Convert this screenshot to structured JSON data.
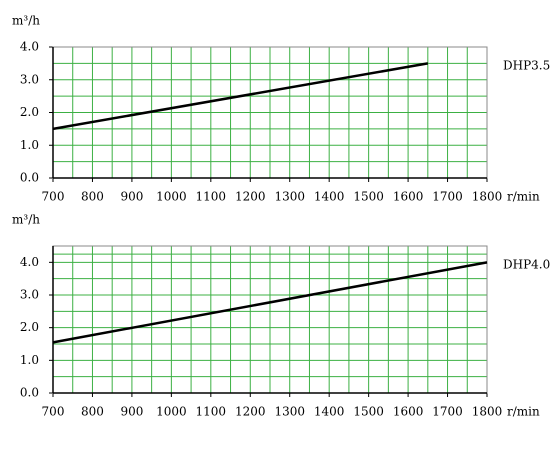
{
  "chart_data": [
    {
      "type": "line",
      "y_label": "m³/h",
      "x_label": "r/min",
      "x": [
        700,
        1650
      ],
      "series": [
        {
          "name": "DHP3.5",
          "color": "#000000",
          "values": [
            1.5,
            3.5
          ]
        }
      ],
      "xlim": [
        700,
        1800
      ],
      "xticks": [
        700,
        800,
        900,
        1000,
        1100,
        1200,
        1300,
        1400,
        1500,
        1600,
        1700,
        1800
      ],
      "ylim": [
        0,
        4
      ],
      "yticks": [
        {
          "value": 0,
          "label": "0.0"
        },
        {
          "value": 1,
          "label": "1.0"
        },
        {
          "value": 2,
          "label": "2.0"
        },
        {
          "value": 3,
          "label": "3.0"
        },
        {
          "value": 4,
          "label": "4.0"
        }
      ],
      "grid": true,
      "grid_color": "#3cb043"
    },
    {
      "type": "line",
      "y_label": "m³/h",
      "x_label": "r/min",
      "x": [
        700,
        1800
      ],
      "series": [
        {
          "name": "DHP4.0",
          "color": "#000000",
          "values": [
            1.55,
            4.0
          ]
        }
      ],
      "xlim": [
        700,
        1800
      ],
      "xticks": [
        700,
        800,
        900,
        1000,
        1100,
        1200,
        1300,
        1400,
        1500,
        1600,
        1700,
        1800
      ],
      "ylim": [
        0,
        4.5
      ],
      "yticks": [
        {
          "value": 0,
          "label": "0.0"
        },
        {
          "value": 1,
          "label": "1.0"
        },
        {
          "value": 2,
          "label": "2.0"
        },
        {
          "value": 3,
          "label": "3.0"
        },
        {
          "value": 4,
          "label": "4.0"
        }
      ],
      "grid": true,
      "grid_color": "#3cb043"
    }
  ]
}
